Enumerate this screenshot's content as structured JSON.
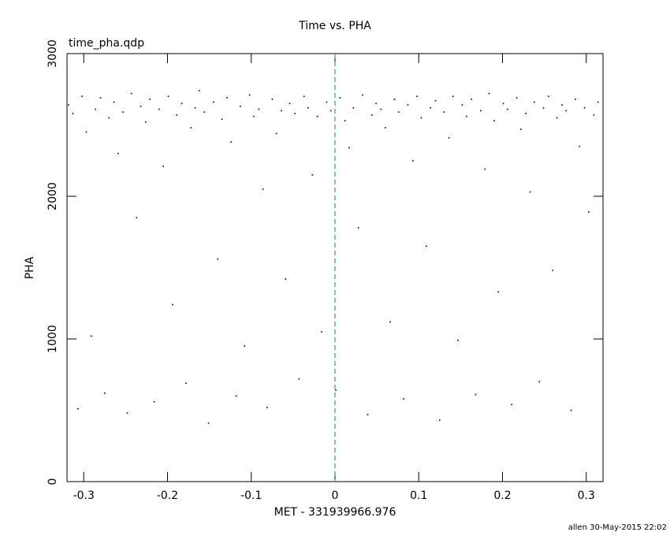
{
  "chart_data": {
    "type": "scatter",
    "title": "Time vs. PHA",
    "subtitle": "time_pha.qdp",
    "xlabel": "MET - 331939966.976",
    "ylabel": "PHA",
    "footer": "allen 30-May-2015 22:02",
    "xlim": [
      -0.32,
      0.32
    ],
    "ylim": [
      0,
      3000
    ],
    "xticks": [
      -0.3,
      -0.2,
      -0.1,
      0,
      0.1,
      0.2,
      0.3
    ],
    "yticks": [
      0,
      1000,
      2000,
      3000
    ],
    "vline": 0,
    "vline_color": "#2a9a9a",
    "color": "#000000",
    "x": [
      -0.318,
      -0.313,
      -0.307,
      -0.302,
      -0.297,
      -0.291,
      -0.286,
      -0.28,
      -0.275,
      -0.27,
      -0.264,
      -0.259,
      -0.253,
      -0.248,
      -0.243,
      -0.237,
      -0.232,
      -0.226,
      -0.221,
      -0.216,
      -0.21,
      -0.205,
      -0.199,
      -0.194,
      -0.189,
      -0.183,
      -0.178,
      -0.172,
      -0.167,
      -0.162,
      -0.156,
      -0.151,
      -0.145,
      -0.14,
      -0.135,
      -0.129,
      -0.124,
      -0.118,
      -0.113,
      -0.108,
      -0.102,
      -0.097,
      -0.091,
      -0.086,
      -0.081,
      -0.075,
      -0.07,
      -0.064,
      -0.059,
      -0.054,
      -0.048,
      -0.043,
      -0.037,
      -0.032,
      -0.027,
      -0.021,
      -0.016,
      -0.01,
      -0.005,
      0.001,
      0.006,
      0.012,
      0.017,
      0.022,
      0.028,
      0.033,
      0.039,
      0.044,
      0.049,
      0.055,
      0.06,
      0.066,
      0.071,
      0.076,
      0.082,
      0.087,
      0.093,
      0.098,
      0.103,
      0.109,
      0.114,
      0.12,
      0.125,
      0.13,
      0.136,
      0.141,
      0.147,
      0.152,
      0.157,
      0.163,
      0.168,
      0.174,
      0.179,
      0.184,
      0.19,
      0.195,
      0.201,
      0.206,
      0.211,
      0.217,
      0.222,
      0.228,
      0.233,
      0.238,
      0.244,
      0.249,
      0.255,
      0.26,
      0.265,
      0.271,
      0.276,
      0.282,
      0.287,
      0.292,
      0.298,
      0.303,
      0.309,
      0.314
    ],
    "y": [
      2640,
      2580,
      510,
      2700,
      2450,
      1020,
      2610,
      2690,
      620,
      2550,
      2660,
      2300,
      2590,
      480,
      2720,
      1850,
      2630,
      2520,
      2680,
      560,
      2610,
      2210,
      2700,
      1240,
      2570,
      2650,
      690,
      2480,
      2620,
      2740,
      2590,
      410,
      2660,
      1560,
      2540,
      2690,
      2380,
      600,
      2630,
      950,
      2710,
      2560,
      2610,
      2050,
      520,
      2680,
      2440,
      2600,
      1420,
      2650,
      2580,
      720,
      2700,
      2620,
      2150,
      2560,
      1050,
      2660,
      2600,
      640,
      2690,
      2530,
      2340,
      2620,
      1780,
      2710,
      470,
      2570,
      2650,
      2610,
      2480,
      1120,
      2680,
      2590,
      580,
      2640,
      2250,
      2700,
      2550,
      1650,
      2620,
      2670,
      430,
      2590,
      2410,
      2700,
      990,
      2640,
      2560,
      2680,
      610,
      2600,
      2190,
      2720,
      2530,
      1330,
      2650,
      2610,
      540,
      2690,
      2470,
      2580,
      2030,
      2660,
      700,
      2620,
      2700,
      1480,
      2550,
      2640,
      2600,
      500,
      2680,
      2350,
      2620,
      1890,
      2570,
      2660
    ]
  }
}
